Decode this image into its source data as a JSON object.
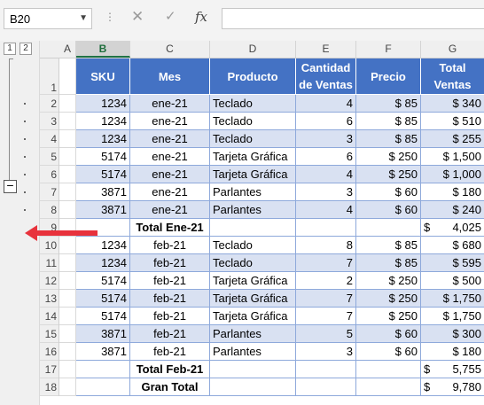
{
  "formula_bar": {
    "name_box": "B20",
    "dropdown_icon": "chevron-down-icon",
    "cancel_symbol": "✕",
    "enter_symbol": "✓",
    "function_symbol": "fx",
    "formula": ""
  },
  "outline": {
    "level_buttons": [
      "1",
      "2"
    ],
    "collapse_symbol": "−"
  },
  "columns": [
    "A",
    "B",
    "C",
    "D",
    "E",
    "F",
    "G"
  ],
  "selected_column": "B",
  "rows": [
    "1",
    "2",
    "3",
    "4",
    "5",
    "6",
    "7",
    "8",
    "9",
    "10",
    "11",
    "12",
    "13",
    "14",
    "15",
    "16",
    "17",
    "18"
  ],
  "table": {
    "headers": [
      "SKU",
      "Mes",
      "Producto",
      "Cantidad de Ventas",
      "Precio",
      "Total Ventas"
    ],
    "data": [
      {
        "sku": "1234",
        "mes": "ene-21",
        "producto": "Teclado",
        "cantidad": "4",
        "precio": "85",
        "total": "340",
        "band": true
      },
      {
        "sku": "1234",
        "mes": "ene-21",
        "producto": "Teclado",
        "cantidad": "6",
        "precio": "85",
        "total": "510",
        "band": false
      },
      {
        "sku": "1234",
        "mes": "ene-21",
        "producto": "Teclado",
        "cantidad": "3",
        "precio": "85",
        "total": "255",
        "band": true
      },
      {
        "sku": "5174",
        "mes": "ene-21",
        "producto": "Tarjeta Gráfica",
        "cantidad": "6",
        "precio": "250",
        "total": "1,500",
        "band": false
      },
      {
        "sku": "5174",
        "mes": "ene-21",
        "producto": "Tarjeta Gráfica",
        "cantidad": "4",
        "precio": "250",
        "total": "1,000",
        "band": true
      },
      {
        "sku": "3871",
        "mes": "ene-21",
        "producto": "Parlantes",
        "cantidad": "3",
        "precio": "60",
        "total": "180",
        "band": false
      },
      {
        "sku": "3871",
        "mes": "ene-21",
        "producto": "Parlantes",
        "cantidad": "4",
        "precio": "60",
        "total": "240",
        "band": true
      },
      {
        "subtotal": true,
        "label": "Total Ene-21",
        "total": "4,025"
      },
      {
        "sku": "1234",
        "mes": "feb-21",
        "producto": "Teclado",
        "cantidad": "8",
        "precio": "85",
        "total": "680",
        "band": false
      },
      {
        "sku": "1234",
        "mes": "feb-21",
        "producto": "Teclado",
        "cantidad": "7",
        "precio": "85",
        "total": "595",
        "band": true
      },
      {
        "sku": "5174",
        "mes": "feb-21",
        "producto": "Tarjeta Gráfica",
        "cantidad": "2",
        "precio": "250",
        "total": "500",
        "band": false
      },
      {
        "sku": "5174",
        "mes": "feb-21",
        "producto": "Tarjeta Gráfica",
        "cantidad": "7",
        "precio": "250",
        "total": "1,750",
        "band": true
      },
      {
        "sku": "5174",
        "mes": "feb-21",
        "producto": "Tarjeta Gráfica",
        "cantidad": "7",
        "precio": "250",
        "total": "1,750",
        "band": false
      },
      {
        "sku": "3871",
        "mes": "feb-21",
        "producto": "Parlantes",
        "cantidad": "5",
        "precio": "60",
        "total": "300",
        "band": true
      },
      {
        "sku": "3871",
        "mes": "feb-21",
        "producto": "Parlantes",
        "cantidad": "3",
        "precio": "60",
        "total": "180",
        "band": false
      },
      {
        "subtotal": true,
        "label": "Total Feb-21",
        "total": "5,755"
      },
      {
        "subtotal": true,
        "label": "Gran Total",
        "total": "9,780"
      }
    ],
    "currency": "$"
  },
  "colors": {
    "header_fill": "#4472c4",
    "band_fill": "#d9e1f2",
    "arrow": "#e8323c",
    "selected_column_text": "#1e6e3c"
  },
  "annotation": {
    "arrow_icon": "red-arrow-left-icon"
  }
}
